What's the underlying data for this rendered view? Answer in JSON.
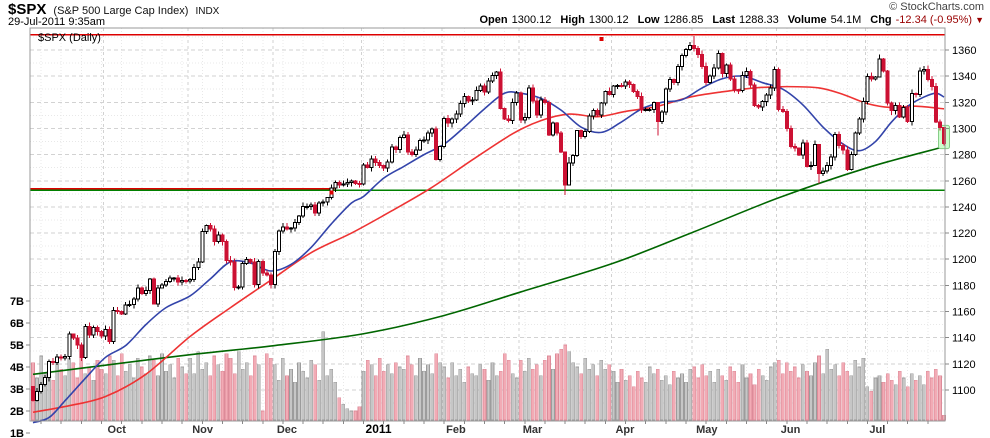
{
  "header": {
    "symbol": "$SPX",
    "name": "(S&P 500 Large Cap Index)",
    "exchange": "INDX",
    "datetime": "29-Jul-2011 9:35am",
    "copyright": "© StockCharts.com",
    "quote_items": [
      {
        "label": "Open",
        "value": "1300.12",
        "negative": false
      },
      {
        "label": "High",
        "value": "1300.12",
        "negative": false
      },
      {
        "label": "Low",
        "value": "1286.85",
        "negative": false
      },
      {
        "label": "Last",
        "value": "1288.33",
        "negative": false
      },
      {
        "label": "Volume",
        "value": "54.1M",
        "negative": false
      },
      {
        "label": "Chg",
        "value": "-12.34 (-0.95%)",
        "negative": true
      }
    ],
    "chg_arrow": "▼"
  },
  "legend": "$SPX (Daily)",
  "colors": {
    "candle_up_stroke": "#000000",
    "candle_up_fill": "#ffffff",
    "candle_down": "#cc1133",
    "volume_up_fill": "#c6c6c6",
    "volume_up_stroke": "#9c9c9c",
    "volume_down_fill": "#f2abb5",
    "volume_down_stroke": "#dd8b99",
    "ma_blue": "#3344aa",
    "ma_red": "#ee3333",
    "ma_green": "#006600",
    "hline_red": "#dd0000",
    "hline_green": "#008000",
    "grid_major": "#d2d2d2",
    "grid_minor": "#e8e8e8",
    "axis": "#999999",
    "tick": "#888888",
    "label_text": "#000000",
    "month_text": "#333333",
    "year_text": "#000000",
    "highlight_fill": "#ccffcc",
    "highlight_stroke": "#88cc88",
    "negative_text": "#990000"
  },
  "chart_data": {
    "type": "candlestick",
    "symbol": "$SPX",
    "timeframe": "Daily",
    "date_range": "07-Sep-2010 to 29-Jul-2011",
    "y_axis": {
      "ticks": [
        1100,
        1120,
        1140,
        1160,
        1180,
        1200,
        1220,
        1240,
        1260,
        1280,
        1300,
        1320,
        1340,
        1360
      ],
      "minor_step": 10
    },
    "volume_axis": {
      "ticks": [
        {
          "label": "1B",
          "v": 1
        },
        {
          "label": "2B",
          "v": 2
        },
        {
          "label": "3B",
          "v": 3
        },
        {
          "label": "4B",
          "v": 4
        },
        {
          "label": "5B",
          "v": 5
        },
        {
          "label": "6B",
          "v": 6
        },
        {
          "label": "7B",
          "v": 7
        }
      ]
    },
    "x_axis": {
      "months": [
        {
          "label": "Oct",
          "d": 18,
          "year": false
        },
        {
          "label": "Nov",
          "d": 39,
          "year": false
        },
        {
          "label": "Dec",
          "d": 60,
          "year": false
        },
        {
          "label": "2011",
          "d": 82,
          "year": true
        },
        {
          "label": "Feb",
          "d": 102,
          "year": false
        },
        {
          "label": "Mar",
          "d": 121,
          "year": false
        },
        {
          "label": "Apr",
          "d": 144,
          "year": false
        },
        {
          "label": "May",
          "d": 164,
          "year": false
        },
        {
          "label": "Jun",
          "d": 185,
          "year": false
        },
        {
          "label": "Jul",
          "d": 207,
          "year": false
        }
      ]
    },
    "open_first": 1102.6,
    "closes": [
      1091.84,
      1098.87,
      1104.18,
      1109.55,
      1121.9,
      1121.1,
      1125.07,
      1124.66,
      1125.59,
      1142.71,
      1139.78,
      1134.28,
      1124.83,
      1148.67,
      1142.16,
      1147.7,
      1144.73,
      1141.2,
      1146.24,
      1137.03,
      1160.75,
      1159.97,
      1158.06,
      1165.15,
      1165.32,
      1169.77,
      1178.1,
      1173.81,
      1176.19,
      1184.71,
      1165.9,
      1178.17,
      1180.26,
      1183.08,
      1185.62,
      1185.64,
      1182.45,
      1183.78,
      1183.26,
      1184.38,
      1193.57,
      1197.96,
      1221.06,
      1225.85,
      1223.25,
      1213.4,
      1218.71,
      1213.54,
      1199.21,
      1197.75,
      1178.34,
      1178.59,
      1196.69,
      1199.73,
      1197.84,
      1180.73,
      1198.35,
      1189.4,
      1187.76,
      1180.55,
      1206.07,
      1221.53,
      1224.71,
      1223.12,
      1223.75,
      1228.28,
      1233.0,
      1240.4,
      1240.46,
      1241.59,
      1235.23,
      1242.87,
      1243.91,
      1247.08,
      1254.6,
      1258.84,
      1256.77,
      1257.54,
      1258.51,
      1259.78,
      1257.88,
      1257.64,
      1271.87,
      1270.2,
      1276.56,
      1273.85,
      1271.5,
      1269.75,
      1274.48,
      1285.96,
      1283.76,
      1293.24,
      1295.02,
      1281.92,
      1280.26,
      1283.35,
      1290.84,
      1291.18,
      1296.63,
      1299.54,
      1276.34,
      1286.12,
      1307.59,
      1304.03,
      1307.1,
      1310.87,
      1319.05,
      1324.57,
      1320.88,
      1321.87,
      1329.15,
      1332.32,
      1328.01,
      1336.32,
      1340.43,
      1343.01,
      1315.44,
      1307.4,
      1306.1,
      1319.88,
      1327.22,
      1306.33,
      1308.44,
      1330.97,
      1321.15,
      1310.13,
      1321.82,
      1320.02,
      1295.11,
      1304.28,
      1296.39,
      1281.87,
      1256.88,
      1273.72,
      1279.21,
      1298.38,
      1293.77,
      1297.54,
      1309.66,
      1313.8,
      1310.19,
      1319.44,
      1328.26,
      1325.83,
      1332.41,
      1332.87,
      1332.63,
      1335.54,
      1333.51,
      1328.17,
      1324.46,
      1314.16,
      1314.41,
      1314.52,
      1319.68,
      1305.14,
      1312.62,
      1330.36,
      1337.38,
      1335.25,
      1347.24,
      1355.66,
      1360.48,
      1363.61,
      1361.22,
      1356.62,
      1347.32,
      1335.1,
      1340.2,
      1346.29,
      1357.16,
      1342.08,
      1348.65,
      1337.77,
      1329.47,
      1328.98,
      1340.68,
      1343.6,
      1333.27,
      1317.37,
      1316.28,
      1320.47,
      1325.69,
      1331.1,
      1345.2,
      1314.55,
      1312.94,
      1300.16,
      1286.17,
      1284.94,
      1279.56,
      1289.0,
      1270.98,
      1271.83,
      1287.87,
      1265.42,
      1267.64,
      1271.5,
      1278.36,
      1295.52,
      1287.14,
      1283.5,
      1268.45,
      1280.1,
      1296.67,
      1307.41,
      1320.64,
      1339.67,
      1337.88,
      1339.22,
      1353.22,
      1343.8,
      1319.49,
      1313.64,
      1317.72,
      1308.87,
      1316.14,
      1305.44,
      1326.73,
      1325.84,
      1343.8,
      1345.02,
      1337.43,
      1331.94,
      1304.89,
      1300.67,
      1288.33
    ],
    "volumes": [
      4.2,
      3.5,
      4.5,
      3.7,
      4.0,
      3.4,
      4.3,
      3.9,
      3.6,
      4.4,
      4.2,
      3.5,
      4.5,
      3.7,
      4.0,
      3.4,
      4.3,
      3.9,
      3.7,
      4.5,
      4.3,
      3.6,
      4.6,
      3.8,
      4.1,
      3.5,
      4.4,
      4.0,
      3.7,
      4.5,
      4.3,
      3.6,
      4.6,
      3.8,
      4.1,
      3.5,
      4.4,
      4.0,
      3.7,
      4.4,
      3.7,
      4.7,
      3.9,
      4.2,
      3.6,
      4.5,
      4.1,
      3.8,
      4.6,
      4.4,
      3.7,
      4.7,
      3.9,
      4.2,
      3.6,
      4.5,
      4.1,
      2.0,
      4.6,
      4.4,
      4.1,
      3.4,
      4.4,
      3.6,
      3.9,
      3.3,
      4.2,
      3.8,
      3.5,
      4.3,
      4.1,
      3.4,
      5.6,
      3.6,
      3.9,
      3.3,
      2.6,
      2.3,
      2.1,
      2.0,
      2.0,
      2.2,
      3.8,
      4.3,
      4.1,
      3.6,
      4.4,
      3.8,
      4.1,
      3.7,
      4.2,
      4.0,
      3.9,
      4.5,
      4.1,
      3.6,
      4.4,
      3.8,
      4.1,
      3.7,
      4.6,
      4.2,
      4.0,
      3.5,
      4.2,
      3.6,
      3.9,
      3.3,
      4.0,
      3.7,
      3.6,
      4.1,
      3.9,
      3.4,
      4.2,
      3.6,
      3.8,
      4.6,
      4.3,
      3.7,
      3.5,
      4.3,
      3.8,
      4.4,
      3.9,
      4.1,
      3.6,
      4.3,
      4.5,
      3.9,
      4.6,
      4.8,
      5.0,
      4.7,
      4.2,
      4.0,
      3.7,
      4.4,
      3.9,
      4.1,
      3.6,
      4.3,
      3.9,
      4.1,
      3.8,
      3.3,
      3.9,
      3.4,
      3.6,
      3.1,
      3.8,
      3.5,
      3.3,
      4.0,
      3.7,
      3.9,
      3.4,
      3.6,
      3.2,
      3.8,
      3.5,
      3.7,
      3.3,
      3.9,
      4.0,
      3.5,
      4.1,
      3.6,
      3.8,
      3.3,
      3.9,
      3.6,
      3.4,
      4.0,
      3.8,
      3.3,
      4.1,
      3.5,
      3.7,
      3.2,
      3.9,
      3.6,
      3.4,
      4.0,
      4.2,
      4.3,
      3.7,
      4.2,
      3.8,
      4.0,
      3.5,
      4.1,
      3.8,
      3.6,
      4.2,
      4.5,
      3.7,
      4.8,
      3.9,
      4.1,
      3.6,
      4.2,
      3.8,
      3.6,
      4.3,
      4.0,
      4.4,
      3.1,
      2.9,
      3.5,
      3.6,
      3.3,
      3.7,
      3.4,
      3.2,
      3.8,
      3.5,
      3.1,
      3.7,
      3.4,
      3.6,
      3.2,
      3.8,
      3.5,
      3.9,
      3.6,
      1.8
    ],
    "wick_overrides": {
      "0": [
        1102.6,
        1091.1
      ],
      "115": [
        1344.1,
        1338.0
      ],
      "132": [
        1280.9,
        1249.1
      ],
      "133": [
        1278.0,
        1261.0
      ],
      "155": [
        1312.7,
        1294.7
      ],
      "164": [
        1370.6,
        1358.7
      ],
      "195": [
        1274.7,
        1258.1
      ],
      "210": [
        1356.5,
        1343.3
      ],
      "226": [
        1300.1,
        1286.9
      ]
    },
    "moving_averages": {
      "blue": [
        [
          0,
          1075
        ],
        [
          4,
          1079
        ],
        [
          8,
          1092
        ],
        [
          13,
          1109
        ],
        [
          18,
          1125
        ],
        [
          23,
          1134
        ],
        [
          28,
          1150
        ],
        [
          33,
          1163
        ],
        [
          39,
          1172
        ],
        [
          44,
          1185
        ],
        [
          49,
          1198
        ],
        [
          54,
          1197
        ],
        [
          59,
          1191
        ],
        [
          64,
          1196
        ],
        [
          69,
          1209
        ],
        [
          74,
          1227
        ],
        [
          79,
          1243
        ],
        [
          82,
          1248
        ],
        [
          87,
          1262
        ],
        [
          92,
          1271
        ],
        [
          97,
          1280
        ],
        [
          102,
          1288
        ],
        [
          107,
          1301
        ],
        [
          112,
          1315
        ],
        [
          117,
          1327
        ],
        [
          121,
          1327
        ],
        [
          126,
          1323
        ],
        [
          131,
          1314
        ],
        [
          136,
          1301
        ],
        [
          141,
          1297
        ],
        [
          146,
          1305
        ],
        [
          151,
          1315
        ],
        [
          156,
          1320
        ],
        [
          161,
          1322
        ],
        [
          166,
          1331
        ],
        [
          171,
          1338
        ],
        [
          176,
          1340
        ],
        [
          181,
          1335
        ],
        [
          186,
          1330
        ],
        [
          191,
          1318
        ],
        [
          196,
          1301
        ],
        [
          201,
          1288
        ],
        [
          205,
          1283
        ],
        [
          209,
          1290
        ],
        [
          213,
          1305
        ],
        [
          217,
          1317
        ],
        [
          221,
          1324
        ],
        [
          224,
          1327
        ],
        [
          226,
          1324
        ]
      ],
      "red": [
        [
          0,
          1083
        ],
        [
          9,
          1088
        ],
        [
          18,
          1095
        ],
        [
          28,
          1112
        ],
        [
          39,
          1141
        ],
        [
          49,
          1163
        ],
        [
          59,
          1184
        ],
        [
          69,
          1205
        ],
        [
          79,
          1220
        ],
        [
          89,
          1237
        ],
        [
          99,
          1255
        ],
        [
          109,
          1276
        ],
        [
          119,
          1296
        ],
        [
          126,
          1306
        ],
        [
          133,
          1311
        ],
        [
          140,
          1309
        ],
        [
          147,
          1313
        ],
        [
          155,
          1317
        ],
        [
          163,
          1324
        ],
        [
          171,
          1328
        ],
        [
          179,
          1331
        ],
        [
          187,
          1332
        ],
        [
          195,
          1331
        ],
        [
          201,
          1326
        ],
        [
          207,
          1319
        ],
        [
          213,
          1316
        ],
        [
          219,
          1317
        ],
        [
          226,
          1315
        ]
      ],
      "green": [
        [
          0,
          1112
        ],
        [
          18,
          1119
        ],
        [
          39,
          1127
        ],
        [
          60,
          1134
        ],
        [
          82,
          1143
        ],
        [
          102,
          1157
        ],
        [
          121,
          1175
        ],
        [
          144,
          1197
        ],
        [
          164,
          1221
        ],
        [
          185,
          1247
        ],
        [
          207,
          1270
        ],
        [
          226,
          1286
        ]
      ]
    },
    "annotations": {
      "hlines": [
        {
          "price": 1371.8,
          "color": "red",
          "from_day": 0,
          "to_day": 226
        },
        {
          "price": 1252.6,
          "color": "green",
          "from_day": 0,
          "to_day": 226
        },
        {
          "price": 1254.0,
          "color": "red",
          "from_day": 0,
          "to_day": 74
        }
      ],
      "handles": [
        {
          "day": 141,
          "price": 1368.5
        },
        {
          "day": 74,
          "price": 1251.0
        }
      ]
    },
    "last_candle_highlight": true
  }
}
